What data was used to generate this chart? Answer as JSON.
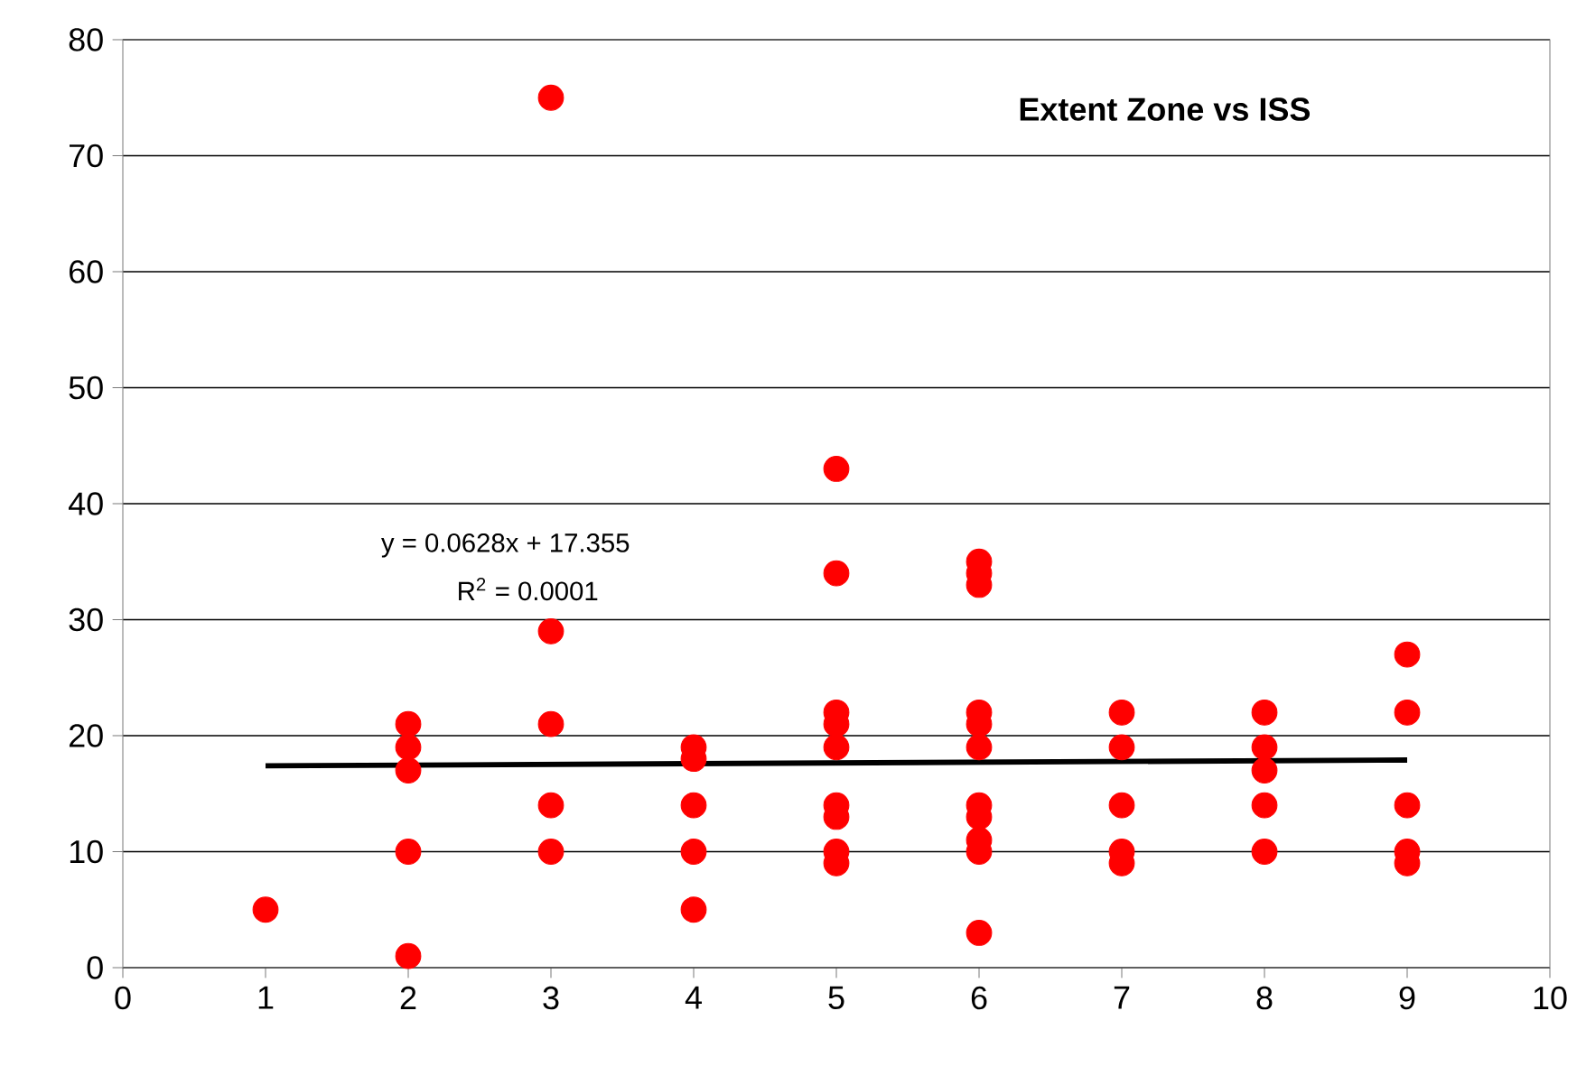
{
  "chart_data": {
    "type": "scatter",
    "title": "Extent Zone vs ISS",
    "annotations": [
      "y = 0.0628x + 17.355",
      "R$^{2}$ = 0.0001"
    ],
    "xlim": [
      0,
      10
    ],
    "xticks": [
      0,
      1,
      2,
      3,
      4,
      5,
      6,
      7,
      8,
      9,
      10
    ],
    "ylim": [
      0,
      80
    ],
    "yticks": [
      0,
      10,
      20,
      30,
      40,
      50,
      60,
      70,
      80
    ],
    "grid": "y",
    "series": [
      {
        "color": "#ff0000",
        "marker": "circle",
        "x": [
          1,
          2,
          2,
          2,
          2,
          2,
          3,
          3,
          3,
          3,
          3,
          4,
          4,
          4,
          4,
          4,
          5,
          5,
          5,
          5,
          5,
          5,
          5,
          5,
          5,
          6,
          6,
          6,
          6,
          6,
          6,
          6,
          6,
          6,
          6,
          6,
          7,
          7,
          7,
          7,
          7,
          8,
          8,
          8,
          8,
          8,
          9,
          9,
          9,
          9,
          9
        ],
        "values": [
          5,
          21,
          19,
          17,
          10,
          1,
          75,
          29,
          21,
          14,
          10,
          19,
          18,
          14,
          10,
          5,
          43,
          34,
          22,
          21,
          19,
          14,
          13,
          10,
          9,
          35,
          34,
          33,
          22,
          21,
          19,
          14,
          13,
          11,
          10,
          3,
          22,
          19,
          14,
          10,
          9,
          22,
          19,
          17,
          14,
          10,
          27,
          22,
          14,
          10,
          9
        ]
      },
      {
        "type": "line",
        "color": "#000000",
        "marker": "none",
        "line_style": "solid",
        "x": [
          1,
          9
        ],
        "values": [
          17.4,
          17.9
        ]
      }
    ]
  }
}
